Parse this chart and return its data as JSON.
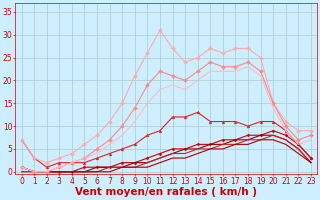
{
  "xlabel": "Vent moyen/en rafales ( km/h )",
  "background_color": "#cceeff",
  "grid_color": "#aacccc",
  "xlim": [
    -0.5,
    23.5
  ],
  "ylim": [
    -0.5,
    37
  ],
  "xticks": [
    0,
    1,
    2,
    3,
    4,
    5,
    6,
    7,
    8,
    9,
    10,
    11,
    12,
    13,
    14,
    15,
    16,
    17,
    18,
    19,
    20,
    21,
    22,
    23
  ],
  "yticks": [
    0,
    5,
    10,
    15,
    20,
    25,
    30,
    35
  ],
  "lines": [
    {
      "x": [
        0,
        1,
        2,
        3,
        4,
        5,
        6,
        7,
        8,
        9,
        10,
        11,
        12,
        13,
        14,
        15,
        16,
        17,
        18,
        19,
        20,
        21,
        22,
        23
      ],
      "y": [
        7,
        3,
        1,
        2,
        2,
        2,
        3,
        4,
        5,
        6,
        8,
        9,
        12,
        12,
        13,
        11,
        11,
        11,
        10,
        11,
        11,
        9,
        6,
        3
      ],
      "color": "#dd2222",
      "linewidth": 0.8,
      "marker": "^",
      "markersize": 2.0
    },
    {
      "x": [
        0,
        1,
        2,
        3,
        4,
        5,
        6,
        7,
        8,
        9,
        10,
        11,
        12,
        13,
        14,
        15,
        16,
        17,
        18,
        19,
        20,
        21,
        22,
        23
      ],
      "y": [
        1,
        0,
        0,
        0,
        0,
        1,
        1,
        1,
        2,
        2,
        3,
        4,
        5,
        5,
        6,
        6,
        7,
        7,
        8,
        8,
        9,
        8,
        6,
        3
      ],
      "color": "#cc0000",
      "linewidth": 0.8,
      "marker": "D",
      "markersize": 1.5
    },
    {
      "x": [
        0,
        1,
        2,
        3,
        4,
        5,
        6,
        7,
        8,
        9,
        10,
        11,
        12,
        13,
        14,
        15,
        16,
        17,
        18,
        19,
        20,
        21,
        22,
        23
      ],
      "y": [
        1,
        0,
        0,
        0,
        0,
        0,
        1,
        1,
        1,
        2,
        2,
        3,
        4,
        5,
        5,
        6,
        6,
        7,
        7,
        8,
        8,
        7,
        5,
        2
      ],
      "color": "#880000",
      "linewidth": 0.8,
      "marker": null,
      "markersize": 0
    },
    {
      "x": [
        0,
        1,
        2,
        3,
        4,
        5,
        6,
        7,
        8,
        9,
        10,
        11,
        12,
        13,
        14,
        15,
        16,
        17,
        18,
        19,
        20,
        21,
        22,
        23
      ],
      "y": [
        1,
        0,
        0,
        0,
        0,
        0,
        0,
        1,
        1,
        1,
        2,
        3,
        4,
        4,
        5,
        5,
        6,
        6,
        7,
        7,
        8,
        7,
        5,
        2
      ],
      "color": "#cc2222",
      "linewidth": 0.8,
      "marker": null,
      "markersize": 0
    },
    {
      "x": [
        0,
        1,
        2,
        3,
        4,
        5,
        6,
        7,
        8,
        9,
        10,
        11,
        12,
        13,
        14,
        15,
        16,
        17,
        18,
        19,
        20,
        21,
        22,
        23
      ],
      "y": [
        0,
        0,
        0,
        0,
        0,
        0,
        0,
        0,
        1,
        1,
        1,
        2,
        3,
        3,
        4,
        5,
        5,
        6,
        6,
        7,
        7,
        6,
        4,
        2
      ],
      "color": "#aa0000",
      "linewidth": 0.8,
      "marker": null,
      "markersize": 0
    },
    {
      "x": [
        0,
        1,
        2,
        3,
        4,
        5,
        6,
        7,
        8,
        9,
        10,
        11,
        12,
        13,
        14,
        15,
        16,
        17,
        18,
        19,
        20,
        21,
        22,
        23
      ],
      "y": [
        7,
        3,
        2,
        3,
        4,
        6,
        8,
        11,
        15,
        21,
        26,
        31,
        27,
        24,
        25,
        27,
        26,
        27,
        27,
        25,
        15,
        11,
        9,
        9
      ],
      "color": "#ffaaaa",
      "linewidth": 0.8,
      "marker": "D",
      "markersize": 2.0
    },
    {
      "x": [
        0,
        1,
        2,
        3,
        4,
        5,
        6,
        7,
        8,
        9,
        10,
        11,
        12,
        13,
        14,
        15,
        16,
        17,
        18,
        19,
        20,
        21,
        22,
        23
      ],
      "y": [
        1,
        0,
        0,
        1,
        2,
        3,
        5,
        7,
        10,
        14,
        19,
        22,
        21,
        20,
        22,
        24,
        23,
        23,
        24,
        22,
        15,
        10,
        7,
        8
      ],
      "color": "#ff8888",
      "linewidth": 0.8,
      "marker": "D",
      "markersize": 2.0
    },
    {
      "x": [
        0,
        1,
        2,
        3,
        4,
        5,
        6,
        7,
        8,
        9,
        10,
        11,
        12,
        13,
        14,
        15,
        16,
        17,
        18,
        19,
        20,
        21,
        22,
        23
      ],
      "y": [
        1,
        0,
        0,
        1,
        2,
        3,
        4,
        6,
        8,
        11,
        15,
        18,
        19,
        18,
        20,
        22,
        22,
        22,
        23,
        21,
        14,
        9,
        6,
        7
      ],
      "color": "#ffbbbb",
      "linewidth": 0.8,
      "marker": null,
      "markersize": 0
    }
  ],
  "axis_color": "#cc0000",
  "tick_color": "#cc0000",
  "tick_fontsize": 5.5,
  "xlabel_fontsize": 7.5,
  "xlabel_bold": true
}
